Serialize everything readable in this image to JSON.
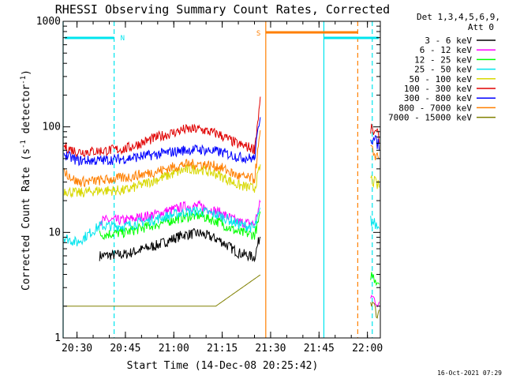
{
  "chart_data": {
    "type": "line",
    "title": "RHESSI Observing Summary Count Rates, Corrected",
    "xlabel": "Start Time (14-Dec-08 20:25:42)",
    "ylabel_main": "Corrected Count Rate (s",
    "ylabel_sup1": "-1",
    "ylabel_mid": " detector",
    "ylabel_sup2": "-1",
    "ylabel_end": ")",
    "y_scale": "log",
    "ylim": [
      1,
      1000
    ],
    "xlim": [
      "20:25:42",
      "22:04:00"
    ],
    "x_ticks": [
      "20:30",
      "20:45",
      "21:00",
      "21:15",
      "21:30",
      "21:45",
      "22:00"
    ],
    "y_ticks": [
      "1",
      "10",
      "100",
      "1000"
    ],
    "legend_header": [
      "Det 1,3,4,5,6,9,",
      "Att 0"
    ],
    "legend_placement": "right",
    "flags": [
      {
        "label": "N",
        "color": "#00e5ee"
      },
      {
        "label": "S",
        "color": "#ff7f00"
      }
    ],
    "time_markers": [
      {
        "time": "20:25:42",
        "color": "#00e5ee",
        "style": "solid"
      },
      {
        "time": "20:41:30",
        "color": "#00e5ee",
        "style": "dashed"
      },
      {
        "time": "21:28:30",
        "color": "#ff7f00",
        "style": "solid"
      },
      {
        "time": "21:46:30",
        "color": "#00e5ee",
        "style": "solid"
      },
      {
        "time": "21:57:00",
        "color": "#ff7f00",
        "style": "dashed"
      },
      {
        "time": "22:01:30",
        "color": "#00e5ee",
        "style": "dashed"
      }
    ],
    "series": [
      {
        "name": "3 - 6 keV",
        "color": "#000000",
        "points": [
          [
            "20:37",
            6.0
          ],
          [
            "20:45",
            6.2
          ],
          [
            "20:55",
            7.6
          ],
          [
            "21:03",
            9.5
          ],
          [
            "21:08",
            9.8
          ],
          [
            "21:14",
            8.5
          ],
          [
            "21:20",
            6.4
          ],
          [
            "21:25",
            5.8
          ],
          [
            "21:27",
            10
          ]
        ]
      },
      {
        "name": "6 - 12 keV",
        "color": "#ff00ff",
        "points": [
          [
            "20:37",
            13
          ],
          [
            "20:45",
            13
          ],
          [
            "20:55",
            15
          ],
          [
            "21:03",
            17.5
          ],
          [
            "21:08",
            17.8
          ],
          [
            "21:14",
            15.5
          ],
          [
            "21:20",
            12.5
          ],
          [
            "21:25",
            12
          ],
          [
            "21:27",
            20
          ],
          [
            "22:01",
            2.5
          ]
        ]
      },
      {
        "name": "12 - 25 keV",
        "color": "#00ff00",
        "points": [
          [
            "20:37",
            9.5
          ],
          [
            "20:45",
            10
          ],
          [
            "20:55",
            12
          ],
          [
            "21:03",
            14
          ],
          [
            "21:08",
            14.5
          ],
          [
            "21:14",
            12.5
          ],
          [
            "21:20",
            10
          ],
          [
            "21:25",
            9.5
          ],
          [
            "21:27",
            15
          ],
          [
            "22:01",
            4.0
          ]
        ]
      },
      {
        "name": "25 - 50 keV",
        "color": "#00e5ee",
        "points": [
          [
            "20:26",
            9
          ],
          [
            "20:30",
            8
          ],
          [
            "20:37",
            11.5
          ],
          [
            "20:45",
            11.5
          ],
          [
            "20:55",
            13.5
          ],
          [
            "21:03",
            15.5
          ],
          [
            "21:08",
            16
          ],
          [
            "21:14",
            14.5
          ],
          [
            "21:20",
            12
          ],
          [
            "21:25",
            11
          ],
          [
            "21:27",
            17
          ],
          [
            "22:01",
            13
          ]
        ]
      },
      {
        "name": "50 - 100 keV",
        "color": "#d8d800",
        "points": [
          [
            "20:26",
            25
          ],
          [
            "20:30",
            23.5
          ],
          [
            "20:37",
            25
          ],
          [
            "20:45",
            25
          ],
          [
            "20:55",
            32
          ],
          [
            "21:03",
            39
          ],
          [
            "21:08",
            40
          ],
          [
            "21:14",
            35
          ],
          [
            "21:20",
            28
          ],
          [
            "21:25",
            26
          ],
          [
            "21:27",
            45
          ],
          [
            "22:01",
            32
          ]
        ]
      },
      {
        "name": "100 - 300 keV",
        "color": "#e00000",
        "points": [
          [
            "20:26",
            65
          ],
          [
            "20:30",
            58
          ],
          [
            "20:37",
            59
          ],
          [
            "20:45",
            62
          ],
          [
            "20:55",
            80
          ],
          [
            "21:03",
            94
          ],
          [
            "21:08",
            95
          ],
          [
            "21:14",
            85
          ],
          [
            "21:20",
            68
          ],
          [
            "21:25",
            62
          ],
          [
            "21:27",
            200
          ],
          [
            "22:01",
            95
          ]
        ]
      },
      {
        "name": "300 - 800 keV",
        "color": "#0000ff",
        "points": [
          [
            "20:26",
            55
          ],
          [
            "20:30",
            48
          ],
          [
            "20:37",
            48
          ],
          [
            "20:45",
            50
          ],
          [
            "20:55",
            55
          ],
          [
            "21:03",
            60
          ],
          [
            "21:08",
            61
          ],
          [
            "21:14",
            58
          ],
          [
            "21:20",
            52
          ],
          [
            "21:25",
            50
          ],
          [
            "21:27",
            150
          ],
          [
            "22:01",
            80
          ]
        ]
      },
      {
        "name": "800 - 7000 keV",
        "color": "#ff7f00",
        "points": [
          [
            "20:26",
            38
          ],
          [
            "20:30",
            30
          ],
          [
            "20:37",
            31
          ],
          [
            "20:45",
            33
          ],
          [
            "20:55",
            38
          ],
          [
            "21:03",
            44
          ],
          [
            "21:08",
            44.5
          ],
          [
            "21:14",
            42
          ],
          [
            "21:20",
            34
          ],
          [
            "21:25",
            32
          ],
          [
            "21:27",
            100
          ],
          [
            "22:01",
            60
          ]
        ]
      },
      {
        "name": "7000 - 15000 keV",
        "color": "#808000",
        "points": [
          [
            "20:26",
            2.0
          ],
          [
            "20:32",
            2.0
          ],
          [
            "20:58",
            2.0
          ],
          [
            "21:13",
            2.0
          ],
          [
            "21:27",
            4.0
          ],
          [
            "22:01",
            2.0
          ]
        ]
      }
    ],
    "timestamp": "16-Oct-2021 07:29"
  }
}
